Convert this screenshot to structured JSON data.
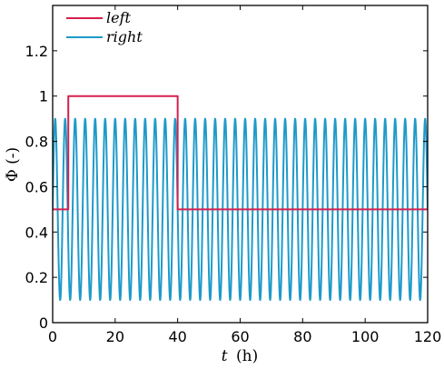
{
  "chart_data": {
    "type": "line",
    "xlabel_var": "t",
    "xlabel_unit": "(h)",
    "ylabel": "Φ (-)",
    "xlim": [
      0,
      120
    ],
    "ylim": [
      0,
      1.4
    ],
    "xticks": [
      0,
      20,
      40,
      60,
      80,
      100,
      120
    ],
    "xtick_labels": [
      "0",
      "20",
      "40",
      "60",
      "80",
      "100",
      "120"
    ],
    "yticks": [
      0,
      0.2,
      0.4,
      0.6,
      0.8,
      1,
      1.2
    ],
    "ytick_labels": [
      "0",
      "0.2",
      "0.4",
      "0.6",
      "0.8",
      "1",
      "1.2"
    ],
    "grid": false,
    "legend_position": "top-left",
    "series": [
      {
        "name": "left",
        "color": "#d6204e",
        "kind": "step",
        "x": [
          0,
          5,
          5,
          40,
          40,
          120
        ],
        "y": [
          0.5,
          0.5,
          1,
          1,
          0.5,
          0.5
        ]
      },
      {
        "name": "right",
        "color": "#1f9ac9",
        "kind": "sinusoid",
        "mean": 0.5,
        "amplitude": 0.4,
        "period_h": 3.2,
        "x_range": [
          0,
          120
        ]
      }
    ]
  }
}
